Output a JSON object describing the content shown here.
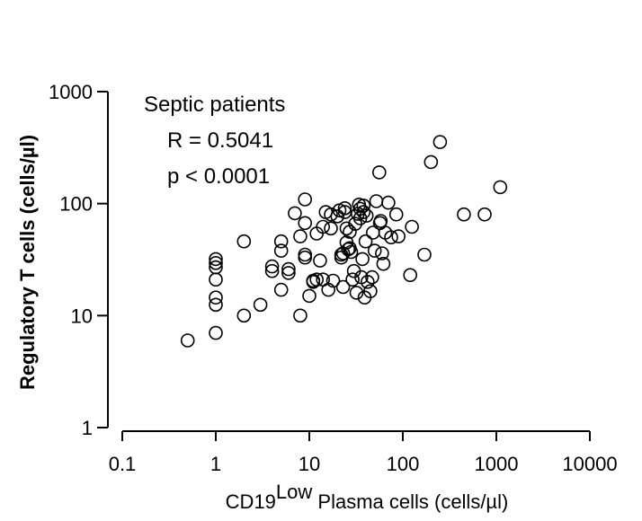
{
  "chart_data": {
    "type": "scatter",
    "title": "",
    "xlabel": {
      "prefix": "CD19",
      "superscript": "Low",
      "suffix": " Plasma cells (cells/µl)"
    },
    "ylabel": "Regulatory T cells (cells/µl)",
    "x_scale": "log",
    "y_scale": "log",
    "xlim": [
      0.1,
      10000
    ],
    "ylim": [
      1,
      1000
    ],
    "x_ticks": [
      {
        "value": 0.1,
        "label": "0.1"
      },
      {
        "value": 1,
        "label": "1"
      },
      {
        "value": 10,
        "label": "10"
      },
      {
        "value": 100,
        "label": "100"
      },
      {
        "value": 1000,
        "label": "1000"
      },
      {
        "value": 10000,
        "label": "10000"
      }
    ],
    "y_ticks": [
      {
        "value": 1,
        "label": "1"
      },
      {
        "value": 10,
        "label": "10"
      },
      {
        "value": 100,
        "label": "100"
      },
      {
        "value": 1000,
        "label": "1000"
      }
    ],
    "annotations": [
      "Septic patients",
      "R = 0.5041",
      "p < 0.0001"
    ],
    "grid": false,
    "marker": "open-circle",
    "points": [
      [
        0.5,
        6
      ],
      [
        1,
        7
      ],
      [
        1,
        12.5
      ],
      [
        1,
        14.5
      ],
      [
        1,
        21
      ],
      [
        1,
        27
      ],
      [
        1,
        29.5
      ],
      [
        1,
        32
      ],
      [
        2,
        10
      ],
      [
        2,
        46
      ],
      [
        3,
        12.5
      ],
      [
        4,
        25
      ],
      [
        4,
        27.5
      ],
      [
        5,
        17
      ],
      [
        5,
        38
      ],
      [
        5,
        46
      ],
      [
        6,
        24
      ],
      [
        6,
        26
      ],
      [
        7,
        82
      ],
      [
        8,
        10
      ],
      [
        8,
        51
      ],
      [
        9,
        33
      ],
      [
        9,
        35
      ],
      [
        9,
        67
      ],
      [
        9,
        109
      ],
      [
        10,
        15
      ],
      [
        11,
        20
      ],
      [
        11,
        20.5
      ],
      [
        12,
        21
      ],
      [
        12,
        54
      ],
      [
        13,
        31
      ],
      [
        14,
        21
      ],
      [
        14,
        62
      ],
      [
        15,
        84
      ],
      [
        16,
        17
      ],
      [
        17,
        60
      ],
      [
        17,
        80
      ],
      [
        18,
        20.5
      ],
      [
        20,
        77
      ],
      [
        21,
        87
      ],
      [
        22,
        33
      ],
      [
        22,
        35
      ],
      [
        23,
        18
      ],
      [
        23,
        36
      ],
      [
        24,
        84
      ],
      [
        24,
        91
      ],
      [
        25,
        45
      ],
      [
        25,
        60
      ],
      [
        26,
        39
      ],
      [
        27,
        40
      ],
      [
        27,
        56
      ],
      [
        28,
        37
      ],
      [
        29,
        21
      ],
      [
        30,
        25
      ],
      [
        31,
        66
      ],
      [
        32,
        16
      ],
      [
        33,
        81
      ],
      [
        34,
        98
      ],
      [
        35,
        74
      ],
      [
        35,
        90
      ],
      [
        36,
        22
      ],
      [
        37,
        32
      ],
      [
        38,
        84
      ],
      [
        38,
        96
      ],
      [
        39,
        14.5
      ],
      [
        40,
        46
      ],
      [
        41,
        78
      ],
      [
        42,
        20
      ],
      [
        45,
        16.5
      ],
      [
        47,
        22
      ],
      [
        48,
        55
      ],
      [
        50,
        38
      ],
      [
        52,
        105
      ],
      [
        56,
        190
      ],
      [
        57,
        67
      ],
      [
        58,
        70
      ],
      [
        60,
        36
      ],
      [
        62,
        29
      ],
      [
        65,
        55
      ],
      [
        70,
        102
      ],
      [
        75,
        50
      ],
      [
        85,
        80
      ],
      [
        90,
        51
      ],
      [
        120,
        23
      ],
      [
        125,
        62
      ],
      [
        170,
        35
      ],
      [
        200,
        235
      ],
      [
        250,
        355
      ],
      [
        450,
        80
      ],
      [
        750,
        80
      ],
      [
        1100,
        140
      ]
    ]
  }
}
